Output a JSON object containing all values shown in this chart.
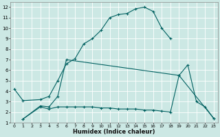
{
  "xlabel": "Humidex (Indice chaleur)",
  "bg_color": "#cce8e4",
  "line_color": "#006060",
  "grid_color": "#ffffff",
  "xlim": [
    -0.5,
    23.5
  ],
  "ylim": [
    1,
    12.5
  ],
  "xticks": [
    0,
    1,
    2,
    3,
    4,
    5,
    6,
    7,
    8,
    9,
    10,
    11,
    12,
    13,
    14,
    15,
    16,
    17,
    18,
    19,
    20,
    21,
    22,
    23
  ],
  "yticks": [
    1,
    2,
    3,
    4,
    5,
    6,
    7,
    8,
    9,
    10,
    11,
    12
  ],
  "curve1_x": [
    0,
    1,
    3,
    4,
    5,
    6,
    7,
    8,
    9,
    10,
    11,
    12,
    13,
    14,
    15,
    16,
    17,
    18
  ],
  "curve1_y": [
    4.2,
    3.1,
    3.2,
    3.5,
    5.0,
    6.6,
    7.1,
    8.5,
    9.0,
    9.8,
    11.0,
    11.3,
    11.4,
    11.85,
    12.0,
    11.6,
    10.0,
    9.0
  ],
  "curve2_x": [
    1,
    3,
    4,
    5,
    6,
    19,
    20,
    21,
    22,
    23
  ],
  "curve2_y": [
    1.35,
    2.6,
    2.5,
    3.5,
    7.0,
    5.5,
    6.5,
    3.0,
    2.5,
    1.4
  ],
  "curve3_x": [
    1,
    3,
    4,
    5,
    6,
    7,
    8,
    9,
    10,
    11,
    12,
    13,
    14,
    15,
    16,
    17,
    18,
    19,
    23
  ],
  "curve3_y": [
    1.35,
    2.5,
    2.3,
    2.5,
    2.5,
    2.5,
    2.5,
    2.5,
    2.4,
    2.4,
    2.3,
    2.3,
    2.3,
    2.2,
    2.2,
    2.1,
    2.0,
    5.5,
    1.4
  ]
}
